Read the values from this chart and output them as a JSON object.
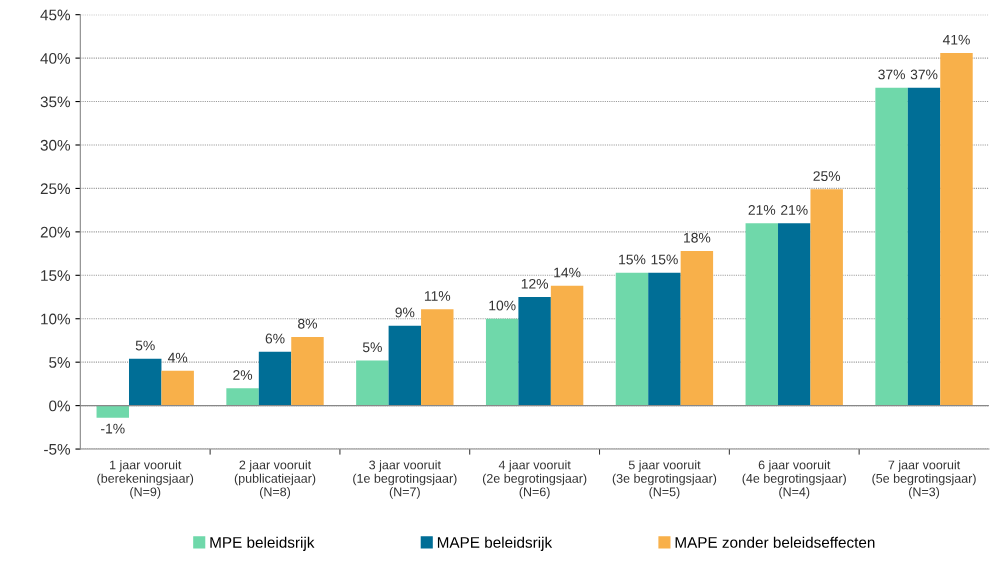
{
  "chart_data": {
    "type": "bar",
    "categories": [
      "1 jaar vooruit\n(berekeningsjaar)\n(N=9)",
      "2 jaar vooruit\n(publicatiejaar)\n(N=8)",
      "3 jaar vooruit\n(1e begrotingsjaar)\n(N=7)",
      "4 jaar vooruit\n(2e begrotingsjaar)\n(N=6)",
      "5 jaar vooruit\n(3e begrotingsjaar)\n(N=5)",
      "6 jaar vooruit\n(4e begrotingsjaar)\n(N=4)",
      "7 jaar vooruit\n(5e begrotingsjaar)\n(N=3)"
    ],
    "series": [
      {
        "name": "MPE beleidsrijk",
        "color": "#6fd8aa",
        "values": [
          -1.4,
          2.0,
          5.2,
          10.0,
          15.3,
          21.0,
          36.6
        ],
        "value_labels": [
          "-1%",
          "2%",
          "5%",
          "10%",
          "15%",
          "21%",
          "37%"
        ]
      },
      {
        "name": "MAPE beleidsrijk",
        "color": "#006e96",
        "values": [
          5.4,
          6.2,
          9.2,
          12.5,
          15.3,
          21.0,
          36.6
        ],
        "value_labels": [
          "5%",
          "6%",
          "9%",
          "12%",
          "15%",
          "21%",
          "37%"
        ]
      },
      {
        "name": "MAPE zonder beleidseffecten",
        "color": "#f8b04a",
        "values": [
          4.0,
          7.9,
          11.1,
          13.8,
          17.8,
          24.9,
          40.6
        ],
        "value_labels": [
          "4%",
          "8%",
          "11%",
          "14%",
          "18%",
          "25%",
          "41%"
        ]
      }
    ],
    "ylim": [
      -5,
      45
    ],
    "yticks": [
      {
        "value": -5,
        "label": "-5%"
      },
      {
        "value": 0,
        "label": "0%"
      },
      {
        "value": 5,
        "label": "5%"
      },
      {
        "value": 10,
        "label": "10%"
      },
      {
        "value": 15,
        "label": "15%"
      },
      {
        "value": 20,
        "label": "20%"
      },
      {
        "value": 25,
        "label": "25%"
      },
      {
        "value": 30,
        "label": "30%"
      },
      {
        "value": 35,
        "label": "35%"
      },
      {
        "value": 40,
        "label": "40%"
      },
      {
        "value": 45,
        "label": "45%"
      }
    ],
    "grid": "y",
    "legend": "bottom"
  }
}
